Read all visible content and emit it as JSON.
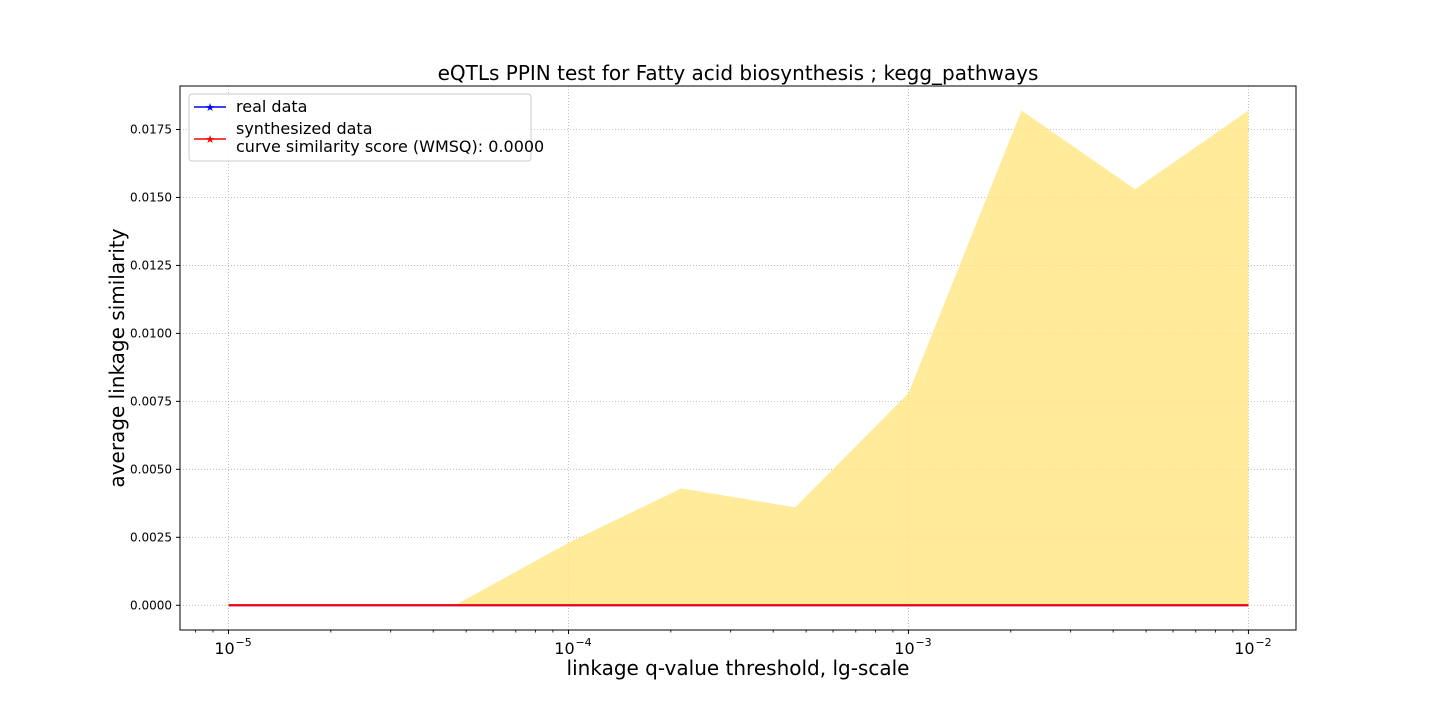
{
  "chart_data": {
    "type": "line",
    "title": "eQTLs PPIN test for Fatty acid biosynthesis ; kegg_pathways",
    "xlabel": "linkage q-value threshold, lg-scale",
    "ylabel": "average linkage similarity",
    "xscale": "log",
    "xlim": [
      7.2e-06,
      0.0138
    ],
    "ylim": [
      -0.00091,
      0.0191
    ],
    "x_ticks": [
      {
        "value": 1e-05,
        "base": "10",
        "exp": "−5"
      },
      {
        "value": 0.0001,
        "base": "10",
        "exp": "−4"
      },
      {
        "value": 0.001,
        "base": "10",
        "exp": "−3"
      },
      {
        "value": 0.01,
        "base": "10",
        "exp": "−2"
      }
    ],
    "y_ticks": [
      {
        "value": 0.0,
        "label": "0.0000"
      },
      {
        "value": 0.0025,
        "label": "0.0025"
      },
      {
        "value": 0.005,
        "label": "0.0050"
      },
      {
        "value": 0.0075,
        "label": "0.0075"
      },
      {
        "value": 0.01,
        "label": "0.0100"
      },
      {
        "value": 0.0125,
        "label": "0.0125"
      },
      {
        "value": 0.015,
        "label": "0.0150"
      },
      {
        "value": 0.0175,
        "label": "0.0175"
      }
    ],
    "grid": true,
    "legend_position": "top-left",
    "legend_extra_line": "curve similarity score (WMSQ): 0.0000",
    "series": [
      {
        "name": "real data",
        "color": "#0000ff",
        "marker": "star",
        "x": [
          1e-05,
          2.15e-05,
          4.64e-05,
          0.0001,
          0.000215,
          0.000464,
          0.001,
          0.00215,
          0.00464,
          0.01
        ],
        "y": [
          0,
          0,
          0,
          0,
          0,
          0,
          0,
          0,
          0,
          0
        ]
      },
      {
        "name": "synthesized data",
        "color": "#ff0000",
        "marker": "star",
        "x": [
          1e-05,
          2.15e-05,
          4.64e-05,
          0.0001,
          0.000215,
          0.000464,
          0.001,
          0.00215,
          0.00464,
          0.01
        ],
        "y": [
          0,
          0,
          0,
          0,
          0,
          0,
          0,
          0,
          0,
          0
        ]
      }
    ],
    "band": {
      "color": "#ffe680",
      "x": [
        1e-05,
        2.15e-05,
        4.64e-05,
        0.0001,
        0.000215,
        0.000464,
        0.001,
        0.00215,
        0.00464,
        0.01
      ],
      "lower": [
        0,
        0,
        0,
        0,
        0,
        0,
        0,
        0,
        0,
        0
      ],
      "upper": [
        0,
        0,
        0,
        0.0023,
        0.0043,
        0.0036,
        0.0078,
        0.0182,
        0.0153,
        0.0182
      ]
    }
  }
}
